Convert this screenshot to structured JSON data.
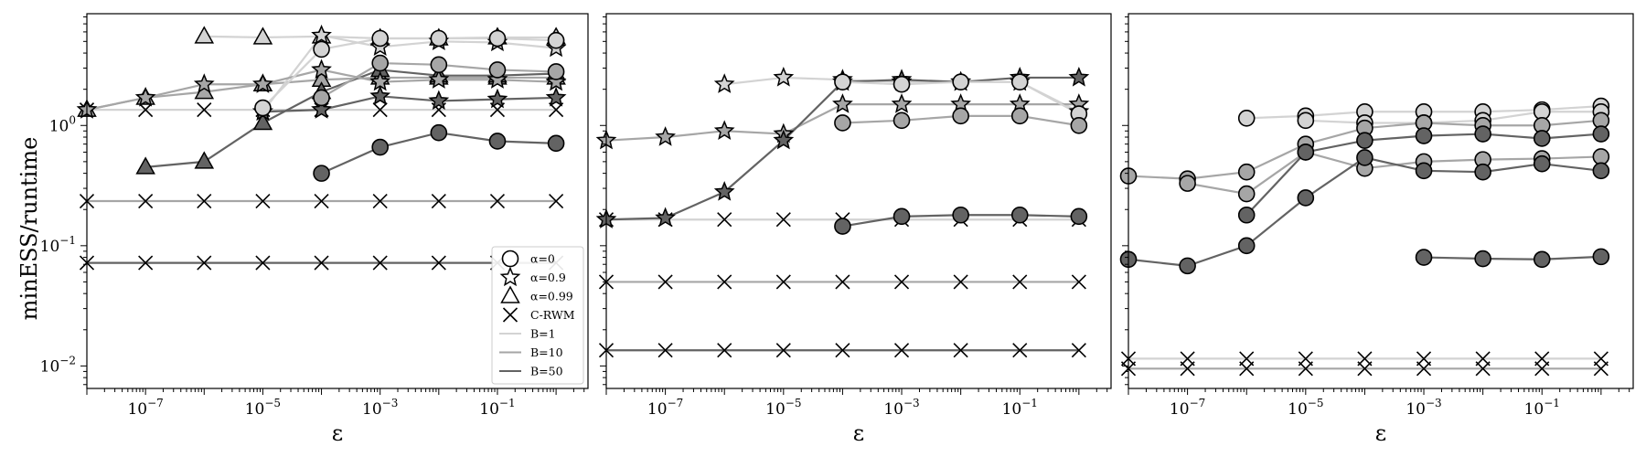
{
  "chart_data": {
    "type": "line",
    "x_scale": "log",
    "y_scale": "log",
    "xlim": [
      1e-08,
      3.5
    ],
    "ylim": [
      0.0065,
      8.5
    ],
    "shared_ylabel": "minESS/runtime",
    "xlabel": "ε",
    "x_ticks": [
      1e-07,
      1e-05,
      0.001,
      0.1
    ],
    "y_ticks": [
      0.01,
      0.1,
      1
    ],
    "x": [
      1e-08,
      1e-07,
      1e-06,
      1e-05,
      0.0001,
      0.001,
      0.01,
      0.1,
      1
    ],
    "colors": {
      "B=1": "#d3d3d3",
      "B=10": "#a6a6a6",
      "B=50": "#636363"
    },
    "legend": {
      "position": "lower-right of first panel",
      "entries": [
        {
          "label": "α=0",
          "marker": "circle"
        },
        {
          "label": "α=0.9",
          "marker": "star"
        },
        {
          "label": "α=0.99",
          "marker": "triangle"
        },
        {
          "label": "C-RWM",
          "marker": "x"
        },
        {
          "label": "B=1",
          "line": "B=1"
        },
        {
          "label": "B=10",
          "line": "B=10"
        },
        {
          "label": "B=50",
          "line": "B=50"
        }
      ]
    },
    "panels": [
      {
        "series": [
          {
            "marker": "x",
            "b": "B=1",
            "values": [
              1.35,
              1.35,
              1.35,
              1.35,
              1.35,
              1.35,
              1.35,
              1.35,
              1.35
            ]
          },
          {
            "marker": "x",
            "b": "B=10",
            "values": [
              0.235,
              0.235,
              0.235,
              0.235,
              0.235,
              0.235,
              0.235,
              0.235,
              0.235
            ]
          },
          {
            "marker": "x",
            "b": "B=50",
            "values": [
              0.072,
              0.072,
              0.072,
              0.072,
              0.072,
              0.072,
              0.072,
              0.072,
              0.072
            ]
          },
          {
            "marker": "triangle",
            "b": "B=1",
            "values": [
              null,
              null,
              5.5,
              5.4,
              5.5,
              5.3,
              5.3,
              5.4,
              5.4
            ]
          },
          {
            "marker": "triangle",
            "b": "B=10",
            "values": [
              1.35,
              1.7,
              1.9,
              2.2,
              2.4,
              2.5,
              2.5,
              2.5,
              2.5
            ]
          },
          {
            "marker": "triangle",
            "b": "B=50",
            "values": [
              null,
              0.45,
              0.5,
              1.05,
              1.9,
              2.9,
              2.6,
              2.6,
              2.7
            ]
          },
          {
            "marker": "star",
            "b": "B=1",
            "values": [
              null,
              null,
              null,
              1.3,
              5.6,
              4.5,
              5.0,
              4.9,
              4.4
            ]
          },
          {
            "marker": "star",
            "b": "B=10",
            "values": [
              1.35,
              1.7,
              2.2,
              2.2,
              2.9,
              2.3,
              2.4,
              2.4,
              2.3
            ]
          },
          {
            "marker": "star",
            "b": "B=50",
            "values": [
              null,
              null,
              null,
              1.3,
              1.35,
              1.75,
              1.6,
              1.65,
              1.7
            ]
          },
          {
            "marker": "circle",
            "b": "B=1",
            "values": [
              null,
              null,
              null,
              1.4,
              4.3,
              5.3,
              5.3,
              5.3,
              5.1
            ]
          },
          {
            "marker": "circle",
            "b": "B=10",
            "values": [
              null,
              null,
              null,
              null,
              1.7,
              3.3,
              3.2,
              2.9,
              2.8
            ]
          },
          {
            "marker": "circle",
            "b": "B=50",
            "values": [
              null,
              null,
              null,
              null,
              0.4,
              0.66,
              0.87,
              0.74,
              0.71
            ]
          }
        ]
      },
      {
        "series": [
          {
            "marker": "x",
            "b": "B=1",
            "values": [
              0.165,
              0.165,
              0.165,
              0.165,
              0.165,
              0.165,
              0.165,
              0.165,
              0.165
            ]
          },
          {
            "marker": "x",
            "b": "B=10",
            "values": [
              0.05,
              0.05,
              0.05,
              0.05,
              0.05,
              0.05,
              0.05,
              0.05,
              0.05
            ]
          },
          {
            "marker": "x",
            "b": "B=50",
            "values": [
              0.0135,
              0.0135,
              0.0135,
              0.0135,
              0.0135,
              0.0135,
              0.0135,
              0.0135,
              0.0135
            ]
          },
          {
            "marker": "star",
            "b": "B=1",
            "values": [
              null,
              null,
              2.2,
              2.5,
              2.4,
              2.3,
              2.3,
              2.3,
              1.3
            ]
          },
          {
            "marker": "star",
            "b": "B=10",
            "values": [
              0.75,
              0.8,
              0.9,
              0.85,
              1.5,
              1.5,
              1.5,
              1.5,
              1.5
            ]
          },
          {
            "marker": "star",
            "b": "B=50",
            "values": [
              0.165,
              0.17,
              0.28,
              0.75,
              2.3,
              2.4,
              2.3,
              2.5,
              2.5
            ]
          },
          {
            "marker": "circle",
            "b": "B=1",
            "values": [
              null,
              null,
              null,
              null,
              2.3,
              2.2,
              2.3,
              2.3,
              1.25
            ]
          },
          {
            "marker": "circle",
            "b": "B=10",
            "values": [
              null,
              null,
              null,
              null,
              1.05,
              1.1,
              1.2,
              1.2,
              1.0
            ]
          },
          {
            "marker": "circle",
            "b": "B=50",
            "values": [
              null,
              null,
              null,
              null,
              0.145,
              0.175,
              0.18,
              0.18,
              0.175
            ]
          }
        ]
      },
      {
        "series": [
          {
            "marker": "x",
            "b": "B=1",
            "values": [
              0.0115,
              0.0115,
              0.0115,
              0.0115,
              0.0115,
              0.0115,
              0.0115,
              0.0115,
              0.0115
            ]
          },
          {
            "marker": "x",
            "b": "B=10",
            "values": [
              0.0095,
              0.0095,
              0.0095,
              0.0095,
              0.0095,
              0.0095,
              0.0095,
              0.0095,
              0.0095
            ]
          },
          {
            "marker": "circle",
            "b": "B=1",
            "values": [
              null,
              null,
              1.15,
              1.2,
              1.3,
              1.3,
              1.3,
              1.35,
              1.45
            ]
          },
          {
            "marker": "circle",
            "b": "B=1",
            "values": [
              null,
              null,
              null,
              1.1,
              1.05,
              1.05,
              1.1,
              1.3,
              1.3
            ]
          },
          {
            "marker": "circle",
            "b": "B=10",
            "values": [
              0.38,
              0.36,
              0.41,
              0.7,
              0.95,
              1.05,
              1.0,
              1.0,
              1.1
            ]
          },
          {
            "marker": "circle",
            "b": "B=10",
            "values": [
              null,
              0.33,
              0.27,
              0.6,
              0.44,
              0.5,
              0.52,
              0.53,
              0.55
            ]
          },
          {
            "marker": "circle",
            "b": "B=50",
            "values": [
              null,
              null,
              0.18,
              0.6,
              0.75,
              0.82,
              0.85,
              0.78,
              0.85
            ]
          },
          {
            "marker": "circle",
            "b": "B=50",
            "values": [
              0.077,
              0.068,
              0.1,
              0.25,
              0.54,
              0.42,
              0.41,
              0.48,
              0.42
            ]
          },
          {
            "marker": "circle",
            "b": "B=50",
            "values": [
              null,
              null,
              null,
              null,
              null,
              0.08,
              0.078,
              0.077,
              0.081
            ]
          }
        ]
      }
    ]
  }
}
